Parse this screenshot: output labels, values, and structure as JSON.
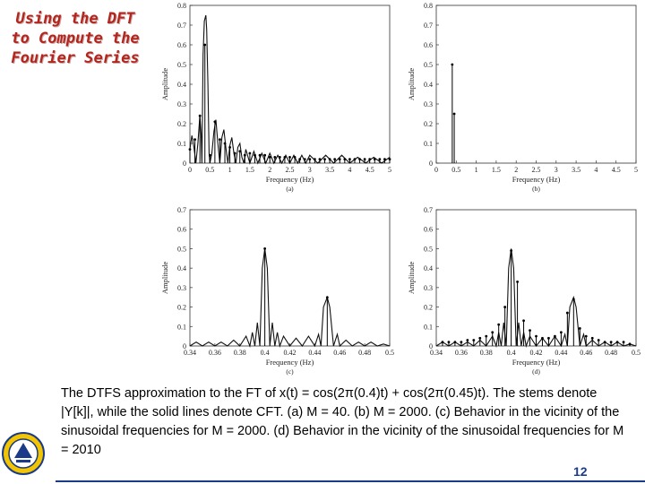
{
  "slide": {
    "title_lines": [
      "Using the DFT",
      "to Compute the",
      "Fourier Series"
    ],
    "caption": "The DTFS approximation to the FT of x(t) = cos(2π(0.4)t) + cos(2π(0.45)t). The stems denote |Y[k]|, while the solid lines denote CFT. (a) M = 40. (b) M = 2000. (c) Behavior in the vicinity of the sinusoidal frequencies for M = 2000. (d) Behavior in the vicinity of the sinusoidal frequencies for M = 2010",
    "page_number": "12",
    "logo_icon": "university-seal-icon"
  },
  "chart_data": [
    {
      "id": "a",
      "type": "line",
      "subtitle": "(a)",
      "xlabel": "Frequency (Hz)",
      "ylabel": "Amplitude",
      "xlim": [
        0,
        5
      ],
      "ylim": [
        0,
        0.8
      ],
      "xticks": [
        "0",
        "0.5",
        "1",
        "1.5",
        "2",
        "2.5",
        "3",
        "3.5",
        "4",
        "4.5",
        "5"
      ],
      "xtick_values": [
        0,
        0.5,
        1,
        1.5,
        2,
        2.5,
        3,
        3.5,
        4,
        4.5,
        5
      ],
      "yticks": [
        "0",
        "0.1",
        "0.2",
        "0.3",
        "0.4",
        "0.5",
        "0.6",
        "0.7",
        "0.8"
      ],
      "ytick_values": [
        0,
        0.1,
        0.2,
        0.3,
        0.4,
        0.5,
        0.6,
        0.7,
        0.8
      ],
      "curve": {
        "x": [
          0,
          0.05,
          0.1,
          0.15,
          0.2,
          0.25,
          0.28,
          0.3,
          0.33,
          0.36,
          0.4,
          0.42,
          0.45,
          0.48,
          0.5,
          0.55,
          0.6,
          0.65,
          0.7,
          0.75,
          0.8,
          0.85,
          0.9,
          0.95,
          1.0,
          1.05,
          1.1,
          1.15,
          1.2,
          1.25,
          1.3,
          1.35,
          1.4,
          1.5,
          1.6,
          1.7,
          1.8,
          1.9,
          2.0,
          2.1,
          2.2,
          2.3,
          2.4,
          2.5,
          2.6,
          2.7,
          2.8,
          2.9,
          3.0,
          3.2,
          3.4,
          3.6,
          3.8,
          4.0,
          4.2,
          4.4,
          4.6,
          4.8,
          5.0
        ],
        "y": [
          0.07,
          0.14,
          0.08,
          0.0,
          0.1,
          0.24,
          0.15,
          0.0,
          0.55,
          0.72,
          0.75,
          0.68,
          0.4,
          0.05,
          0.0,
          0.05,
          0.16,
          0.22,
          0.1,
          0.0,
          0.13,
          0.17,
          0.08,
          0.0,
          0.09,
          0.13,
          0.05,
          0.0,
          0.08,
          0.1,
          0.03,
          0.0,
          0.07,
          0.0,
          0.06,
          0.0,
          0.05,
          0.0,
          0.05,
          0.0,
          0.04,
          0.0,
          0.04,
          0.0,
          0.04,
          0.0,
          0.04,
          0.0,
          0.04,
          0.0,
          0.04,
          0.0,
          0.04,
          0.0,
          0.03,
          0.0,
          0.03,
          0.0,
          0.03
        ]
      },
      "stems": {
        "x": [
          0,
          0.125,
          0.25,
          0.375,
          0.5,
          0.625,
          0.75,
          0.875,
          1.0,
          1.125,
          1.25,
          1.375,
          1.5,
          1.625,
          1.75,
          1.875,
          2.0,
          2.125,
          2.25,
          2.375,
          2.5,
          2.625,
          2.75,
          2.875,
          3.0,
          3.125,
          3.25,
          3.375,
          3.5,
          3.625,
          3.75,
          3.875,
          4.0,
          4.125,
          4.25,
          4.375,
          4.5,
          4.625,
          4.75,
          4.875,
          5.0
        ],
        "y": [
          0.07,
          0.12,
          0.24,
          0.6,
          0.04,
          0.21,
          0.12,
          0.1,
          0.08,
          0.05,
          0.06,
          0.04,
          0.05,
          0.04,
          0.04,
          0.04,
          0.03,
          0.03,
          0.03,
          0.03,
          0.03,
          0.03,
          0.02,
          0.02,
          0.02,
          0.02,
          0.02,
          0.02,
          0.02,
          0.02,
          0.02,
          0.02,
          0.02,
          0.02,
          0.02,
          0.02,
          0.02,
          0.02,
          0.02,
          0.02,
          0.02
        ]
      }
    },
    {
      "id": "b",
      "type": "line",
      "subtitle": "(b)",
      "xlabel": "Frequency (Hz)",
      "ylabel": "Amplitude",
      "xlim": [
        0,
        5
      ],
      "ylim": [
        0,
        0.8
      ],
      "xticks": [
        "0",
        "0.5",
        "1",
        "1.5",
        "2",
        "2.5",
        "3",
        "3.5",
        "4",
        "4.5",
        "5"
      ],
      "xtick_values": [
        0,
        0.5,
        1,
        1.5,
        2,
        2.5,
        3,
        3.5,
        4,
        4.5,
        5
      ],
      "yticks": [
        "0",
        "0.1",
        "0.2",
        "0.3",
        "0.4",
        "0.5",
        "0.6",
        "0.7",
        "0.8"
      ],
      "ytick_values": [
        0,
        0.1,
        0.2,
        0.3,
        0.4,
        0.5,
        0.6,
        0.7,
        0.8
      ],
      "curve": null,
      "stems": {
        "x": [
          0.4,
          0.45
        ],
        "y": [
          0.5,
          0.25
        ]
      }
    },
    {
      "id": "c",
      "type": "line",
      "subtitle": "(c)",
      "xlabel": "Frequency (Hz)",
      "ylabel": "Amplitude",
      "xlim": [
        0.34,
        0.5
      ],
      "ylim": [
        0,
        0.7
      ],
      "xticks": [
        "0.34",
        "0.36",
        "0.38",
        "0.4",
        "0.42",
        "0.44",
        "0.46",
        "0.48",
        "0.5"
      ],
      "xtick_values": [
        0.34,
        0.36,
        0.38,
        0.4,
        0.42,
        0.44,
        0.46,
        0.48,
        0.5
      ],
      "yticks": [
        "0",
        "0.1",
        "0.2",
        "0.3",
        "0.4",
        "0.5",
        "0.6",
        "0.7"
      ],
      "ytick_values": [
        0,
        0.1,
        0.2,
        0.3,
        0.4,
        0.5,
        0.6,
        0.7
      ],
      "curve": {
        "x": [
          0.34,
          0.345,
          0.35,
          0.355,
          0.36,
          0.365,
          0.37,
          0.375,
          0.38,
          0.385,
          0.388,
          0.39,
          0.392,
          0.394,
          0.396,
          0.398,
          0.4,
          0.402,
          0.404,
          0.406,
          0.408,
          0.41,
          0.412,
          0.415,
          0.42,
          0.425,
          0.43,
          0.435,
          0.44,
          0.443,
          0.445,
          0.447,
          0.45,
          0.452,
          0.455,
          0.458,
          0.46,
          0.465,
          0.47,
          0.475,
          0.48,
          0.485,
          0.49,
          0.495,
          0.5
        ],
        "y": [
          0.0,
          0.02,
          0.0,
          0.02,
          0.0,
          0.02,
          0.0,
          0.03,
          0.0,
          0.05,
          0.0,
          0.07,
          0.0,
          0.12,
          0.0,
          0.4,
          0.5,
          0.4,
          0.0,
          0.12,
          0.0,
          0.07,
          0.0,
          0.05,
          0.0,
          0.04,
          0.0,
          0.05,
          0.0,
          0.06,
          0.0,
          0.2,
          0.25,
          0.2,
          0.0,
          0.06,
          0.0,
          0.03,
          0.0,
          0.02,
          0.0,
          0.02,
          0.0,
          0.01,
          0.0
        ]
      },
      "stems": {
        "x": [
          0.4,
          0.45
        ],
        "y": [
          0.5,
          0.25
        ]
      }
    },
    {
      "id": "d",
      "type": "line",
      "subtitle": "(d)",
      "xlabel": "Frequency (Hz)",
      "ylabel": "Amplitude",
      "xlim": [
        0.34,
        0.5
      ],
      "ylim": [
        0,
        0.7
      ],
      "xticks": [
        "0.34",
        "0.36",
        "0.38",
        "0.4",
        "0.42",
        "0.44",
        "0.46",
        "0.48",
        "0.5"
      ],
      "xtick_values": [
        0.34,
        0.36,
        0.38,
        0.4,
        0.42,
        0.44,
        0.46,
        0.48,
        0.5
      ],
      "yticks": [
        "0",
        "0.1",
        "0.2",
        "0.3",
        "0.4",
        "0.5",
        "0.6",
        "0.7"
      ],
      "ytick_values": [
        0,
        0.1,
        0.2,
        0.3,
        0.4,
        0.5,
        0.6,
        0.7
      ],
      "curve": {
        "x": [
          0.34,
          0.345,
          0.35,
          0.355,
          0.36,
          0.365,
          0.37,
          0.375,
          0.38,
          0.385,
          0.388,
          0.39,
          0.392,
          0.394,
          0.396,
          0.398,
          0.4,
          0.402,
          0.404,
          0.406,
          0.408,
          0.41,
          0.412,
          0.415,
          0.42,
          0.425,
          0.43,
          0.435,
          0.44,
          0.443,
          0.445,
          0.447,
          0.45,
          0.452,
          0.455,
          0.458,
          0.46,
          0.465,
          0.47,
          0.475,
          0.48,
          0.485,
          0.49,
          0.495,
          0.5
        ],
        "y": [
          0.0,
          0.02,
          0.0,
          0.02,
          0.0,
          0.02,
          0.0,
          0.03,
          0.0,
          0.05,
          0.0,
          0.07,
          0.0,
          0.12,
          0.0,
          0.4,
          0.5,
          0.4,
          0.0,
          0.12,
          0.0,
          0.07,
          0.0,
          0.05,
          0.0,
          0.04,
          0.0,
          0.05,
          0.0,
          0.06,
          0.0,
          0.2,
          0.25,
          0.2,
          0.0,
          0.06,
          0.0,
          0.03,
          0.0,
          0.02,
          0.0,
          0.02,
          0.0,
          0.01,
          0.0
        ]
      },
      "stems": {
        "x": [
          0.345,
          0.35,
          0.355,
          0.36,
          0.365,
          0.37,
          0.375,
          0.38,
          0.385,
          0.39,
          0.395,
          0.4,
          0.405,
          0.41,
          0.415,
          0.42,
          0.425,
          0.43,
          0.435,
          0.44,
          0.445,
          0.45,
          0.455,
          0.46,
          0.465,
          0.47,
          0.475,
          0.48,
          0.485,
          0.49,
          0.495
        ],
        "y": [
          0.02,
          0.02,
          0.02,
          0.02,
          0.03,
          0.03,
          0.04,
          0.05,
          0.07,
          0.11,
          0.2,
          0.49,
          0.33,
          0.13,
          0.08,
          0.05,
          0.04,
          0.04,
          0.05,
          0.07,
          0.17,
          0.24,
          0.09,
          0.05,
          0.04,
          0.03,
          0.02,
          0.02,
          0.02,
          0.02,
          0.01
        ]
      }
    }
  ]
}
